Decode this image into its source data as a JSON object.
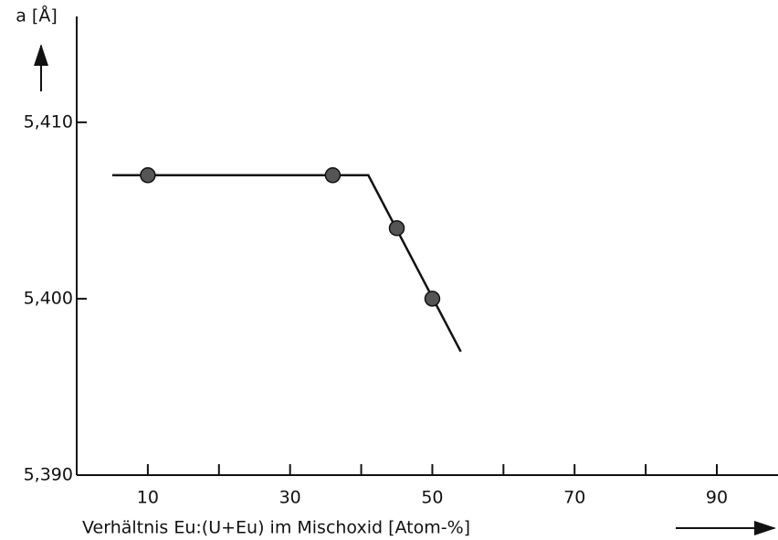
{
  "chart_data": {
    "type": "scatter",
    "y_label": "a [Å]",
    "x_label": "Verhältnis Eu:(U+Eu) im Mischoxid [Atom-%]",
    "xlim": [
      0,
      98.6
    ],
    "ylim": [
      5.39,
      5.416
    ],
    "xticks": [
      10,
      30,
      50,
      70,
      90
    ],
    "xminor_ticks": [
      20,
      40,
      60,
      80
    ],
    "yticks": [
      {
        "value": 5.39,
        "label": "5,390"
      },
      {
        "value": 5.4,
        "label": "5,400"
      },
      {
        "value": 5.41,
        "label": "5,410"
      }
    ],
    "points": {
      "color": "#555555",
      "x": [
        10,
        36,
        45,
        50
      ],
      "y": [
        5.407,
        5.407,
        5.404,
        5.4
      ]
    },
    "line": {
      "color": "#111111",
      "x": [
        5,
        41,
        54
      ],
      "y": [
        5.407,
        5.407,
        5.397
      ]
    }
  }
}
